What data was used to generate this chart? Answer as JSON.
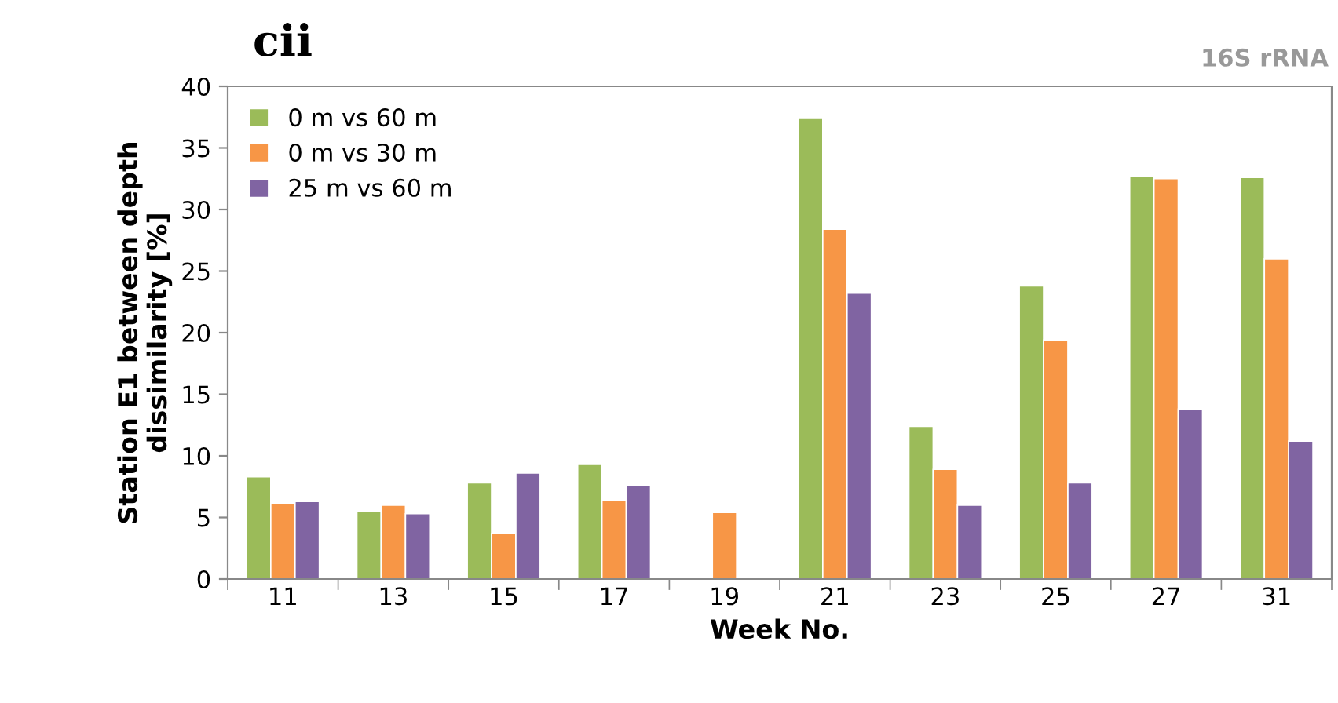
{
  "chart_data": {
    "type": "bar",
    "title": "cii",
    "subtitle": "16S rRNA",
    "xlabel": "Week No.",
    "ylabel": "Station E1 between depth\ndissimilarity [%]",
    "categories": [
      "11",
      "13",
      "15",
      "17",
      "19",
      "21",
      "23",
      "25",
      "27",
      "31"
    ],
    "series": [
      {
        "name": "0 m vs 60 m",
        "color": "#9bbb59",
        "values": [
          8.3,
          5.5,
          7.8,
          9.3,
          null,
          37.4,
          12.4,
          23.8,
          32.7,
          32.6
        ]
      },
      {
        "name": "0 m vs 30 m",
        "color": "#f79646",
        "values": [
          6.1,
          6.0,
          3.7,
          6.4,
          5.4,
          28.4,
          8.9,
          19.4,
          32.5,
          26.0
        ]
      },
      {
        "name": "25 m vs 60 m",
        "color": "#8064a2",
        "values": [
          6.3,
          5.3,
          8.6,
          7.6,
          null,
          23.2,
          6.0,
          7.8,
          13.8,
          11.2
        ]
      }
    ],
    "ylim": [
      0,
      40
    ],
    "yticks": [
      0,
      5,
      10,
      15,
      20,
      25,
      30,
      35,
      40
    ],
    "grid": false,
    "legend": "top left"
  }
}
